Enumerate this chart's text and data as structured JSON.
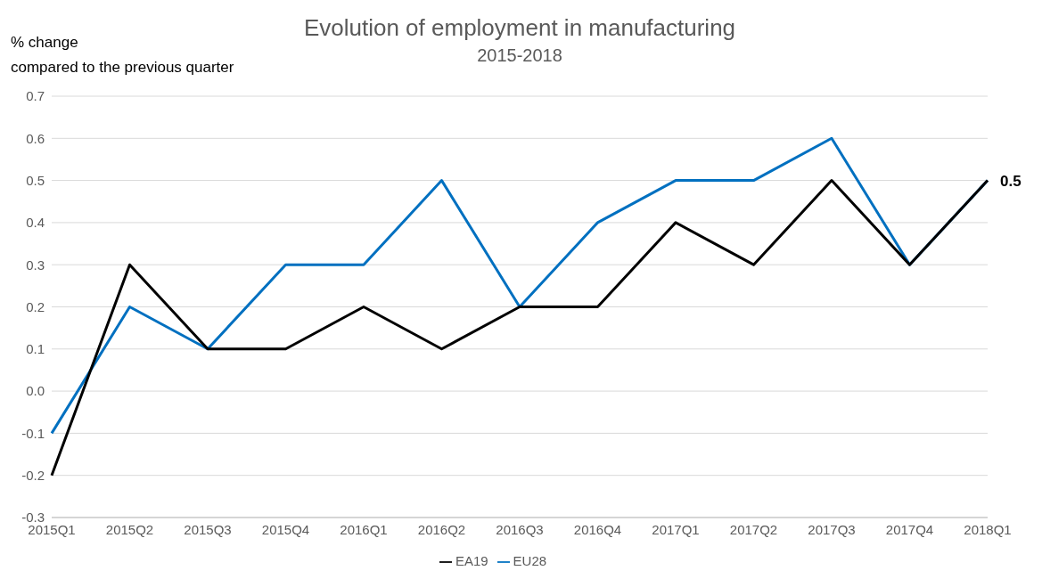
{
  "chart_data": {
    "type": "line",
    "title": "Evolution of employment in manufacturing",
    "subtitle": "2015-2018",
    "ylabel": "% change\ncompared to the previous quarter",
    "categories": [
      "2015Q1",
      "2015Q2",
      "2015Q3",
      "2015Q4",
      "2016Q1",
      "2016Q2",
      "2016Q3",
      "2016Q4",
      "2017Q1",
      "2017Q2",
      "2017Q3",
      "2017Q4",
      "2018Q1"
    ],
    "series": [
      {
        "name": "EU28",
        "color": "#0070c0",
        "values": [
          -0.1,
          0.2,
          0.1,
          0.3,
          0.3,
          0.5,
          0.2,
          0.4,
          0.5,
          0.5,
          0.6,
          0.3,
          0.5
        ]
      },
      {
        "name": "EA19",
        "color": "#000000",
        "values": [
          -0.2,
          0.3,
          0.1,
          0.1,
          0.2,
          0.1,
          0.2,
          0.2,
          0.4,
          0.3,
          0.5,
          0.3,
          0.5
        ],
        "value_labels": [
          null,
          null,
          null,
          null,
          null,
          null,
          null,
          null,
          null,
          null,
          null,
          null,
          "0.5"
        ]
      }
    ],
    "ylim": [
      -0.3,
      0.7
    ],
    "yticks": [
      -0.3,
      -0.2,
      -0.1,
      {
        "value": 0,
        "label": "0.0"
      },
      0.1,
      0.2,
      0.3,
      0.4,
      0.5,
      0.6,
      0.7
    ],
    "grid": "y",
    "legend": "bottom",
    "marker": "none",
    "line_style": "solid"
  }
}
